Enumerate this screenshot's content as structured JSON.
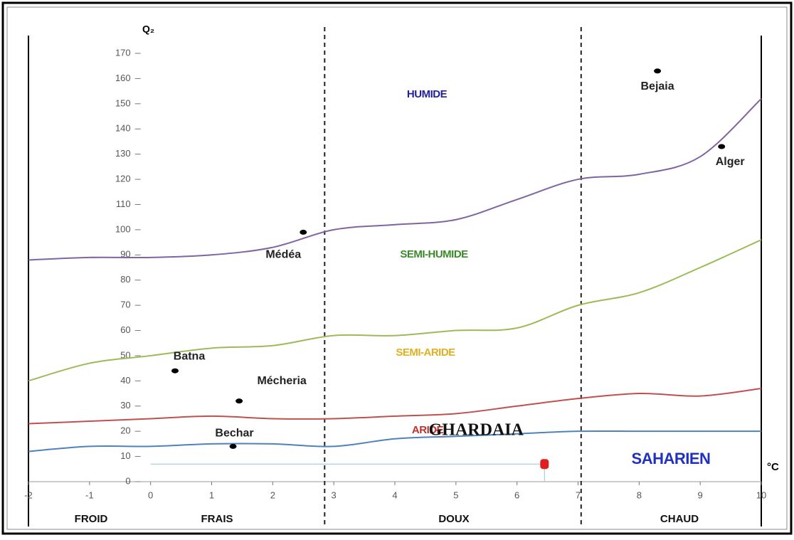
{
  "chart_data": {
    "type": "line",
    "y_label": "Q₂",
    "x_label": "°C",
    "x": [
      -2,
      -1,
      0,
      1,
      2,
      3,
      4,
      5,
      6,
      7,
      8,
      9,
      10
    ],
    "series": [
      {
        "color": "#8064a2",
        "values": [
          88,
          89,
          89,
          90,
          93,
          100,
          102,
          104,
          112,
          120,
          122,
          129,
          152
        ]
      },
      {
        "color": "#9bbb59",
        "values": [
          40,
          47,
          50,
          53,
          54,
          58,
          58,
          60,
          61,
          70,
          75,
          85,
          96
        ]
      },
      {
        "color": "#c0504d",
        "values": [
          23,
          24,
          25,
          26,
          25,
          25,
          26,
          27,
          30,
          33,
          35,
          34,
          37
        ]
      },
      {
        "color": "#4f81bd",
        "values": [
          12,
          14,
          14,
          15,
          15,
          14,
          17,
          18,
          19,
          20,
          20,
          20,
          20
        ]
      }
    ],
    "zones": [
      {
        "label": "HUMIDE",
        "color": "#1f1f9f"
      },
      {
        "label": "SEMI-HUMIDE",
        "color": "#3a8a2a"
      },
      {
        "label": "SEMI-ARIDE",
        "color": "#e0b020"
      },
      {
        "label": "ARIDE",
        "color": "#c0302d"
      },
      {
        "label": "SAHARIEN",
        "color": "#2030c0"
      }
    ],
    "stations": [
      {
        "label": "Bejaia",
        "x": 8.3,
        "y": 163
      },
      {
        "label": "Alger",
        "x": 9.35,
        "y": 133
      },
      {
        "label": "Médéa",
        "x": 2.5,
        "y": 99
      },
      {
        "label": "Batna",
        "x": 0.4,
        "y": 44
      },
      {
        "label": "Mécheria",
        "x": 1.45,
        "y": 32
      },
      {
        "label": "Bechar",
        "x": 1.35,
        "y": 14
      },
      {
        "label": "GHARDAIA",
        "x": 6.45,
        "y": 7,
        "color": "#e02020"
      }
    ],
    "dividers": [
      2.85,
      7.05
    ],
    "bands": [
      "FROID",
      "FRAIS",
      "DOUX",
      "CHAUD"
    ],
    "xlim": [
      -2,
      10
    ],
    "ylim": [
      0,
      170
    ],
    "xticks": [
      -2,
      -1,
      0,
      1,
      2,
      3,
      4,
      5,
      6,
      7,
      8,
      9,
      10
    ],
    "yticks": [
      0,
      10,
      20,
      30,
      40,
      50,
      60,
      70,
      80,
      90,
      100,
      110,
      120,
      130,
      140,
      150,
      160,
      170
    ]
  }
}
